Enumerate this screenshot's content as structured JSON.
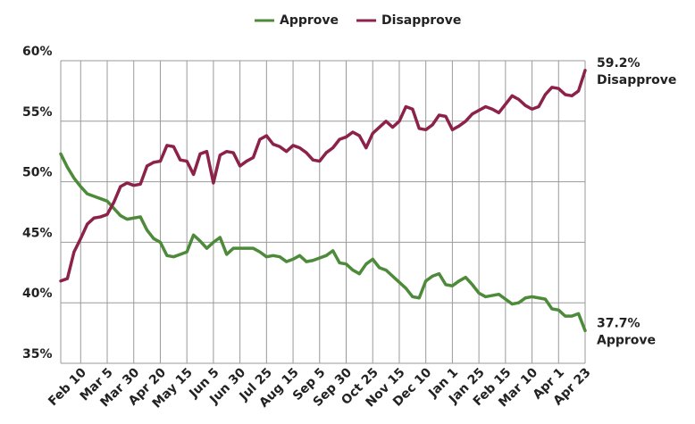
{
  "chart_data": {
    "type": "line",
    "categories": [
      null,
      null,
      null,
      "Feb 10",
      null,
      null,
      null,
      "Mar 5",
      null,
      null,
      null,
      "Mar 30",
      null,
      null,
      null,
      "Apr 20",
      null,
      null,
      null,
      "May 15",
      null,
      null,
      null,
      "Jun 5",
      null,
      null,
      null,
      "Jun 30",
      null,
      null,
      null,
      "Jul 25",
      null,
      null,
      null,
      "Aug 15",
      null,
      null,
      null,
      "Sep 5",
      null,
      null,
      null,
      "Sep 30",
      null,
      null,
      null,
      "Oct 25",
      null,
      null,
      null,
      "Nov 15",
      null,
      null,
      null,
      "Dec 10",
      null,
      null,
      null,
      "Jan 1",
      null,
      null,
      null,
      "Jan 25",
      null,
      null,
      null,
      "Feb 15",
      null,
      null,
      null,
      "Mar 10",
      null,
      null,
      null,
      "Apr 1",
      null,
      null,
      null,
      "Apr 23"
    ],
    "series": [
      {
        "name": "Approve",
        "color": "#4d8b3a",
        "last_label": "37.7%",
        "values": [
          52.3,
          51.2,
          50.3,
          49.6,
          49.0,
          48.8,
          48.6,
          48.4,
          47.8,
          47.2,
          46.9,
          47.0,
          47.1,
          46.0,
          45.3,
          45.0,
          43.9,
          43.8,
          44.0,
          44.2,
          45.6,
          45.1,
          44.5,
          45.0,
          45.4,
          44.0,
          44.5,
          44.5,
          44.5,
          44.5,
          44.2,
          43.8,
          43.9,
          43.8,
          43.4,
          43.6,
          43.9,
          43.4,
          43.5,
          43.7,
          43.9,
          44.3,
          43.3,
          43.2,
          42.7,
          42.4,
          43.2,
          43.6,
          42.9,
          42.7,
          42.2,
          41.7,
          41.2,
          40.5,
          40.4,
          41.8,
          42.2,
          42.4,
          41.5,
          41.4,
          41.8,
          42.1,
          41.5,
          40.8,
          40.5,
          40.6,
          40.7,
          40.3,
          39.9,
          40.0,
          40.4,
          40.5,
          40.4,
          40.3,
          39.5,
          39.4,
          38.9,
          38.9,
          39.1,
          37.7
        ]
      },
      {
        "name": "Disapprove",
        "color": "#8c2249",
        "last_label": "59.2%",
        "values": [
          41.8,
          42.0,
          44.2,
          45.3,
          46.5,
          47.0,
          47.1,
          47.3,
          48.3,
          49.6,
          49.9,
          49.7,
          49.8,
          51.3,
          51.6,
          51.7,
          53.0,
          52.9,
          51.8,
          51.7,
          50.6,
          52.3,
          52.5,
          49.9,
          52.2,
          52.5,
          52.4,
          51.3,
          51.7,
          52.0,
          53.5,
          53.8,
          53.1,
          52.9,
          52.5,
          53.0,
          52.8,
          52.4,
          51.8,
          51.7,
          52.4,
          52.8,
          53.5,
          53.7,
          54.1,
          53.8,
          52.8,
          54.0,
          54.5,
          55.0,
          54.5,
          55.0,
          56.2,
          56.0,
          54.4,
          54.3,
          54.7,
          55.5,
          55.4,
          54.3,
          54.6,
          55.0,
          55.6,
          55.9,
          56.2,
          56.0,
          55.7,
          56.4,
          57.1,
          56.8,
          56.3,
          56.0,
          56.2,
          57.2,
          57.8,
          57.7,
          57.2,
          57.1,
          57.5,
          59.2
        ]
      }
    ],
    "ylim": [
      35,
      60
    ],
    "yticks": [
      {
        "value": 35,
        "label": "35%"
      },
      {
        "value": 40,
        "label": "40%"
      },
      {
        "value": 45,
        "label": "45%"
      },
      {
        "value": 50,
        "label": "50%"
      },
      {
        "value": 55,
        "label": "55%"
      },
      {
        "value": 60,
        "label": "60%"
      }
    ],
    "grid": true,
    "legend": "top"
  }
}
